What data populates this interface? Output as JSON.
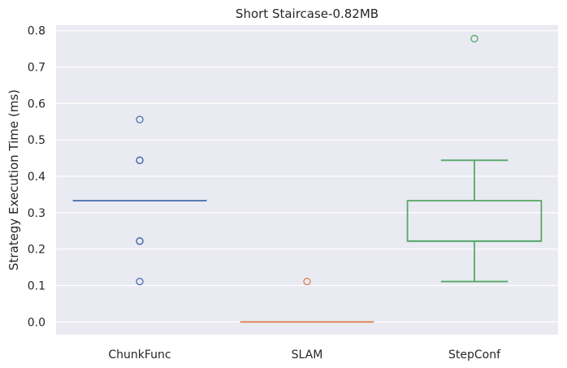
{
  "chart_data": {
    "type": "box",
    "title": "Short Staircase-0.82MB",
    "xlabel": "",
    "ylabel": "Strategy Execution Time (ms)",
    "ylim": [
      -0.035,
      0.815
    ],
    "yticks": [
      "0.0",
      "0.1",
      "0.2",
      "0.3",
      "0.4",
      "0.5",
      "0.6",
      "0.7",
      "0.8"
    ],
    "grid": true,
    "categories": [
      "ChunkFunc",
      "SLAM",
      "StepConf"
    ],
    "colors": {
      "ChunkFunc": "#4c72b0",
      "SLAM": "#dd8452",
      "StepConf": "#55a868"
    },
    "background": "#eaeaf2",
    "boxes": [
      {
        "category": "ChunkFunc",
        "whisker_low": 0.333,
        "q1": 0.333,
        "median": 0.333,
        "q3": 0.333,
        "whisker_high": 0.333,
        "outliers": [
          0.111,
          0.222,
          0.222,
          0.222,
          0.444,
          0.444,
          0.444,
          0.556
        ]
      },
      {
        "category": "SLAM",
        "whisker_low": 0.0,
        "q1": 0.0,
        "median": 0.0,
        "q3": 0.0,
        "whisker_high": 0.0,
        "outliers": [
          0.111
        ]
      },
      {
        "category": "StepConf",
        "whisker_low": 0.111,
        "q1": 0.222,
        "median": 0.222,
        "q3": 0.333,
        "whisker_high": 0.444,
        "outliers": [
          0.778
        ]
      }
    ]
  }
}
